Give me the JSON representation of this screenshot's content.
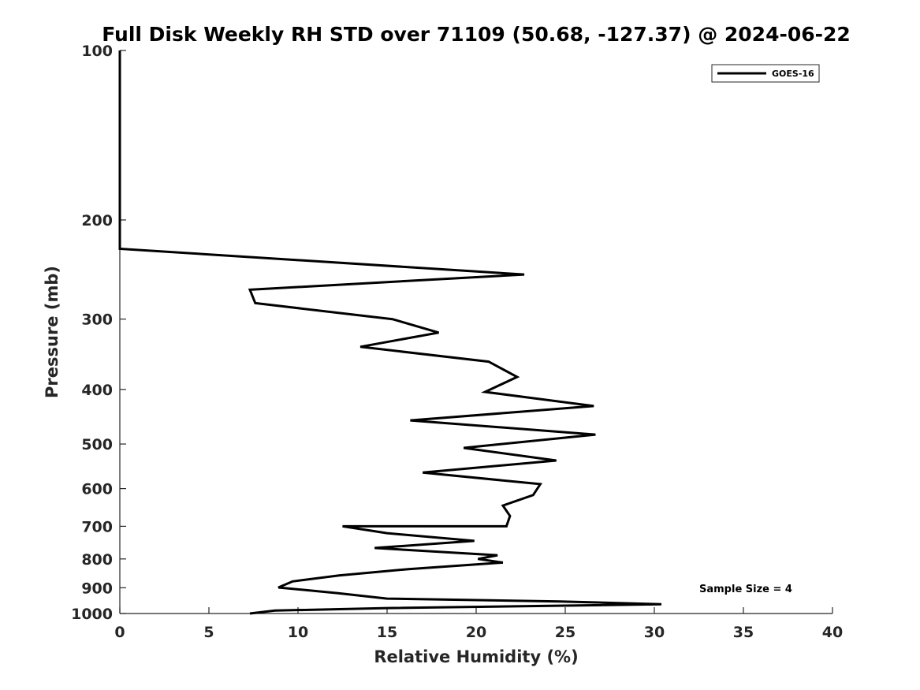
{
  "chart_data": {
    "type": "line",
    "title": "Full Disk Weekly RH STD over 71109 (50.68, -127.37) @ 2024-06-22",
    "xlabel": "Relative Humidity (%)",
    "ylabel": "Pressure (mb)",
    "xlim": [
      0,
      40
    ],
    "ylim": [
      100,
      1000
    ],
    "yscale": "log",
    "y_reversed": true,
    "grid": false,
    "legend_position": "top-right",
    "xticks": [
      0,
      5,
      10,
      15,
      20,
      25,
      30,
      35,
      40
    ],
    "xtick_labels": [
      "0",
      "5",
      "10",
      "15",
      "20",
      "25",
      "30",
      "35",
      "40"
    ],
    "yticks": [
      100,
      200,
      300,
      400,
      500,
      600,
      700,
      800,
      900,
      1000
    ],
    "ytick_labels": [
      "100",
      "200",
      "300",
      "400",
      "500",
      "600",
      "700",
      "800",
      "900",
      "1000"
    ],
    "series": [
      {
        "name": "GOES-16",
        "color": "#000000",
        "points": [
          [
            0,
            100
          ],
          [
            0,
            150
          ],
          [
            0,
            200
          ],
          [
            0,
            225
          ],
          [
            22.7,
            250
          ],
          [
            7.3,
            266
          ],
          [
            7.6,
            281
          ],
          [
            15.3,
            300
          ],
          [
            17.9,
            317
          ],
          [
            13.5,
            336
          ],
          [
            20.7,
            357
          ],
          [
            22.3,
            380
          ],
          [
            20.5,
            404
          ],
          [
            26.6,
            428
          ],
          [
            16.3,
            454
          ],
          [
            26.7,
            481
          ],
          [
            19.3,
            508
          ],
          [
            24.5,
            535
          ],
          [
            17.0,
            562
          ],
          [
            23.6,
            589
          ],
          [
            23.2,
            616
          ],
          [
            21.5,
            643
          ],
          [
            21.9,
            671
          ],
          [
            21.7,
            700
          ],
          [
            12.5,
            700
          ],
          [
            15.0,
            720
          ],
          [
            19.9,
            743
          ],
          [
            14.3,
            765
          ],
          [
            21.2,
            788
          ],
          [
            20.1,
            800
          ],
          [
            21.5,
            812
          ],
          [
            16.2,
            834
          ],
          [
            12.3,
            856
          ],
          [
            9.7,
            877
          ],
          [
            8.9,
            899
          ],
          [
            12.2,
            920
          ],
          [
            15.0,
            941
          ],
          [
            24.7,
            952
          ],
          [
            30.4,
            963
          ],
          [
            15.0,
            978
          ],
          [
            8.7,
            988
          ],
          [
            7.3,
            1000
          ]
        ]
      }
    ],
    "annotations": [
      {
        "text": "Sample Size = 4"
      }
    ]
  }
}
